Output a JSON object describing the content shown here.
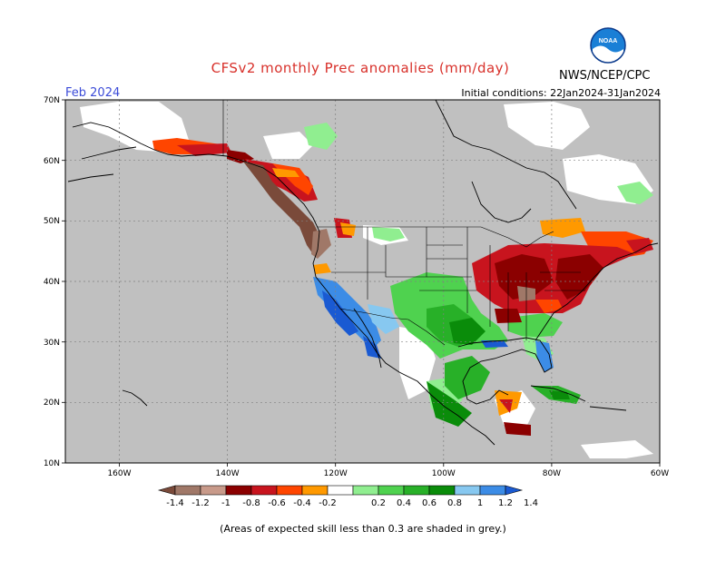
{
  "header": {
    "title": "CFSv2 monthly Prec anomalies (mm/day)",
    "month": "Feb 2024",
    "initial_conditions": "Initial conditions: 22Jan2024-31Jan2024",
    "agency": "NWS/NCEP/CPC",
    "logo_text": "NOAA"
  },
  "map": {
    "lat_labels": [
      "70N",
      "60N",
      "50N",
      "40N",
      "30N",
      "20N",
      "10N"
    ],
    "lon_labels": [
      "160W",
      "140W",
      "120W",
      "100W",
      "80W",
      "60W"
    ],
    "colors": {
      "skill_mask": "#c0c0c0",
      "dry_strong": "#7a4a3a",
      "dry_brown2": "#a07868",
      "dry_darkred": "#8b0000",
      "dry_red": "#c8141e",
      "dry_orangered": "#ff4500",
      "dry_orange": "#ff9900",
      "wet_lightgreen": "#90ee90",
      "wet_green": "#4fd24f",
      "wet_midgreen": "#28b028",
      "wet_darkgreen": "#0a8c0a",
      "wet_lightblue": "#87c8f0",
      "wet_blue": "#3c8ce6",
      "wet_darkblue": "#1a5ad2"
    }
  },
  "colorbar": {
    "labels": [
      "-1.4",
      "-1.2",
      "-1",
      "-0.8",
      "-0.6",
      "-0.4",
      "-0.2",
      "0.2",
      "0.4",
      "0.6",
      "0.8",
      "1",
      "1.2",
      "1.4"
    ],
    "colors": [
      "#7a4a3a",
      "#a07868",
      "#c89a8a",
      "#8b0000",
      "#c8141e",
      "#ff4500",
      "#ff9900",
      "#ffffff",
      "#90ee90",
      "#4fd24f",
      "#28b028",
      "#0a8c0a",
      "#87c8f0",
      "#3c8ce6",
      "#1a5ad2"
    ]
  },
  "footnote": "(Areas of expected skill less than 0.3 are shaded in grey.)"
}
